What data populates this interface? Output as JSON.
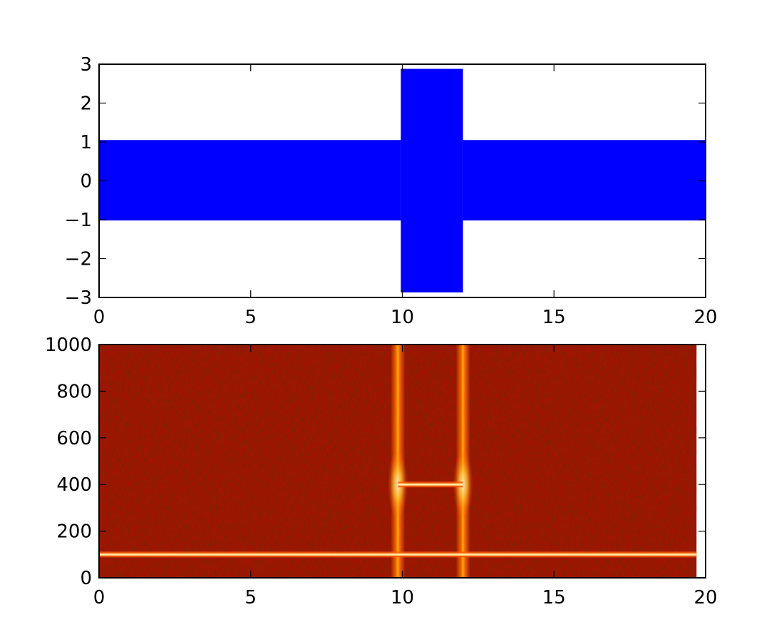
{
  "chart_data": [
    {
      "type": "area",
      "title": "",
      "xlabel": "",
      "ylabel": "",
      "xlim": [
        0,
        20
      ],
      "ylim": [
        -3,
        3
      ],
      "x_ticks": [
        0,
        5,
        10,
        15,
        20
      ],
      "y_ticks": [
        3,
        2,
        1,
        0,
        -1,
        -2,
        -3
      ],
      "x_tick_labels": [
        "0",
        "5",
        "10",
        "15",
        "20"
      ],
      "y_tick_labels": [
        "3",
        "2",
        "1",
        "0",
        "−1",
        "−2",
        "−3"
      ],
      "series": [
        {
          "color": "#0000ff",
          "envelope": [
            {
              "x_start": 0,
              "x_end": 9.95,
              "min": -1.02,
              "max": 1.05
            },
            {
              "x_start": 9.95,
              "x_end": 12.0,
              "min": -2.87,
              "max": 2.88
            },
            {
              "x_start": 12.0,
              "x_end": 20,
              "min": -1.02,
              "max": 1.05
            }
          ]
        }
      ],
      "grid": false
    },
    {
      "type": "heatmap",
      "title": "",
      "xlabel": "",
      "ylabel": "",
      "xlim": [
        0,
        20
      ],
      "ylim": [
        0,
        1000
      ],
      "data_x_extent": [
        0,
        19.7
      ],
      "x_ticks": [
        0,
        5,
        10,
        15,
        20
      ],
      "y_ticks": [
        1000,
        800,
        600,
        400,
        200,
        0
      ],
      "x_tick_labels": [
        "0",
        "5",
        "10",
        "15",
        "20"
      ],
      "y_tick_labels": [
        "1000",
        "800",
        "600",
        "400",
        "200",
        "0"
      ],
      "colormap": "hot",
      "background_color": "#a01500",
      "features": [
        {
          "kind": "horizontal_line",
          "y": 100,
          "x_start": 0,
          "x_end": 19.7
        },
        {
          "kind": "horizontal_line",
          "y": 400,
          "x_start": 9.85,
          "x_end": 12.0
        },
        {
          "kind": "vertical_band",
          "x": 9.85
        },
        {
          "kind": "vertical_band",
          "x": 12.0
        }
      ],
      "grid": false
    }
  ]
}
